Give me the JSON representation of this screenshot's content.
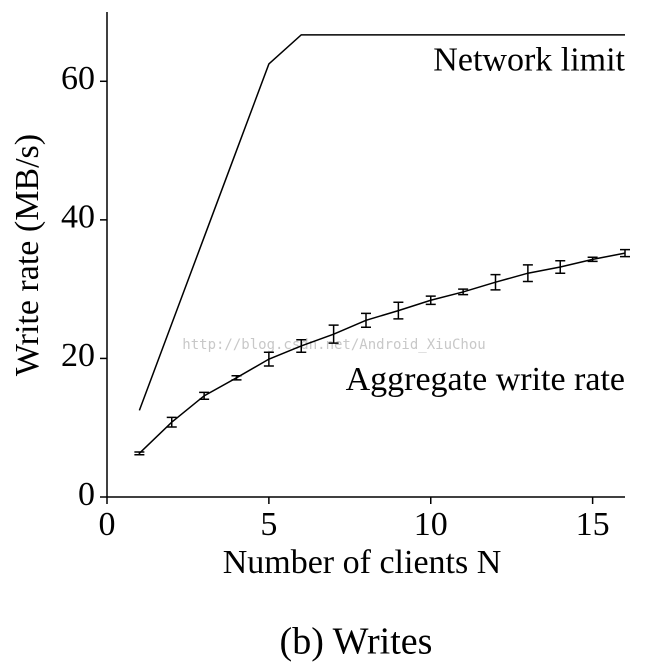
{
  "chart_data": {
    "type": "line",
    "x": [
      1,
      2,
      3,
      4,
      5,
      6,
      7,
      8,
      9,
      10,
      11,
      12,
      13,
      14,
      15,
      16
    ],
    "series": [
      {
        "name": "Network limit",
        "color": "#000000",
        "values": [
          12.5,
          25,
          37.5,
          50,
          62.5,
          66.7,
          66.7,
          66.7,
          66.7,
          66.7,
          66.7,
          66.7,
          66.7,
          66.7,
          66.7,
          66.7
        ]
      },
      {
        "name": "Aggregate write rate",
        "color": "#000000",
        "values": [
          6.3,
          10.8,
          14.6,
          17.2,
          19.9,
          21.8,
          23.5,
          25.5,
          26.9,
          28.4,
          29.6,
          31.0,
          32.3,
          33.2,
          34.3,
          35.2
        ],
        "errors": [
          0.2,
          0.7,
          0.5,
          0.3,
          1.0,
          0.9,
          1.3,
          1.0,
          1.2,
          0.6,
          0.4,
          1.1,
          1.2,
          0.9,
          0.3,
          0.5
        ]
      }
    ],
    "xlabel": "Number of clients N",
    "ylabel": "Write rate (MB/s)",
    "caption": "(b) Writes",
    "watermark": "http://blog.csdn.net/Android_XiuChou",
    "xlim": [
      0,
      16
    ],
    "ylim": [
      0,
      70
    ],
    "xticks": [
      0,
      5,
      10,
      15
    ],
    "yticks": [
      0,
      20,
      40,
      60
    ]
  }
}
